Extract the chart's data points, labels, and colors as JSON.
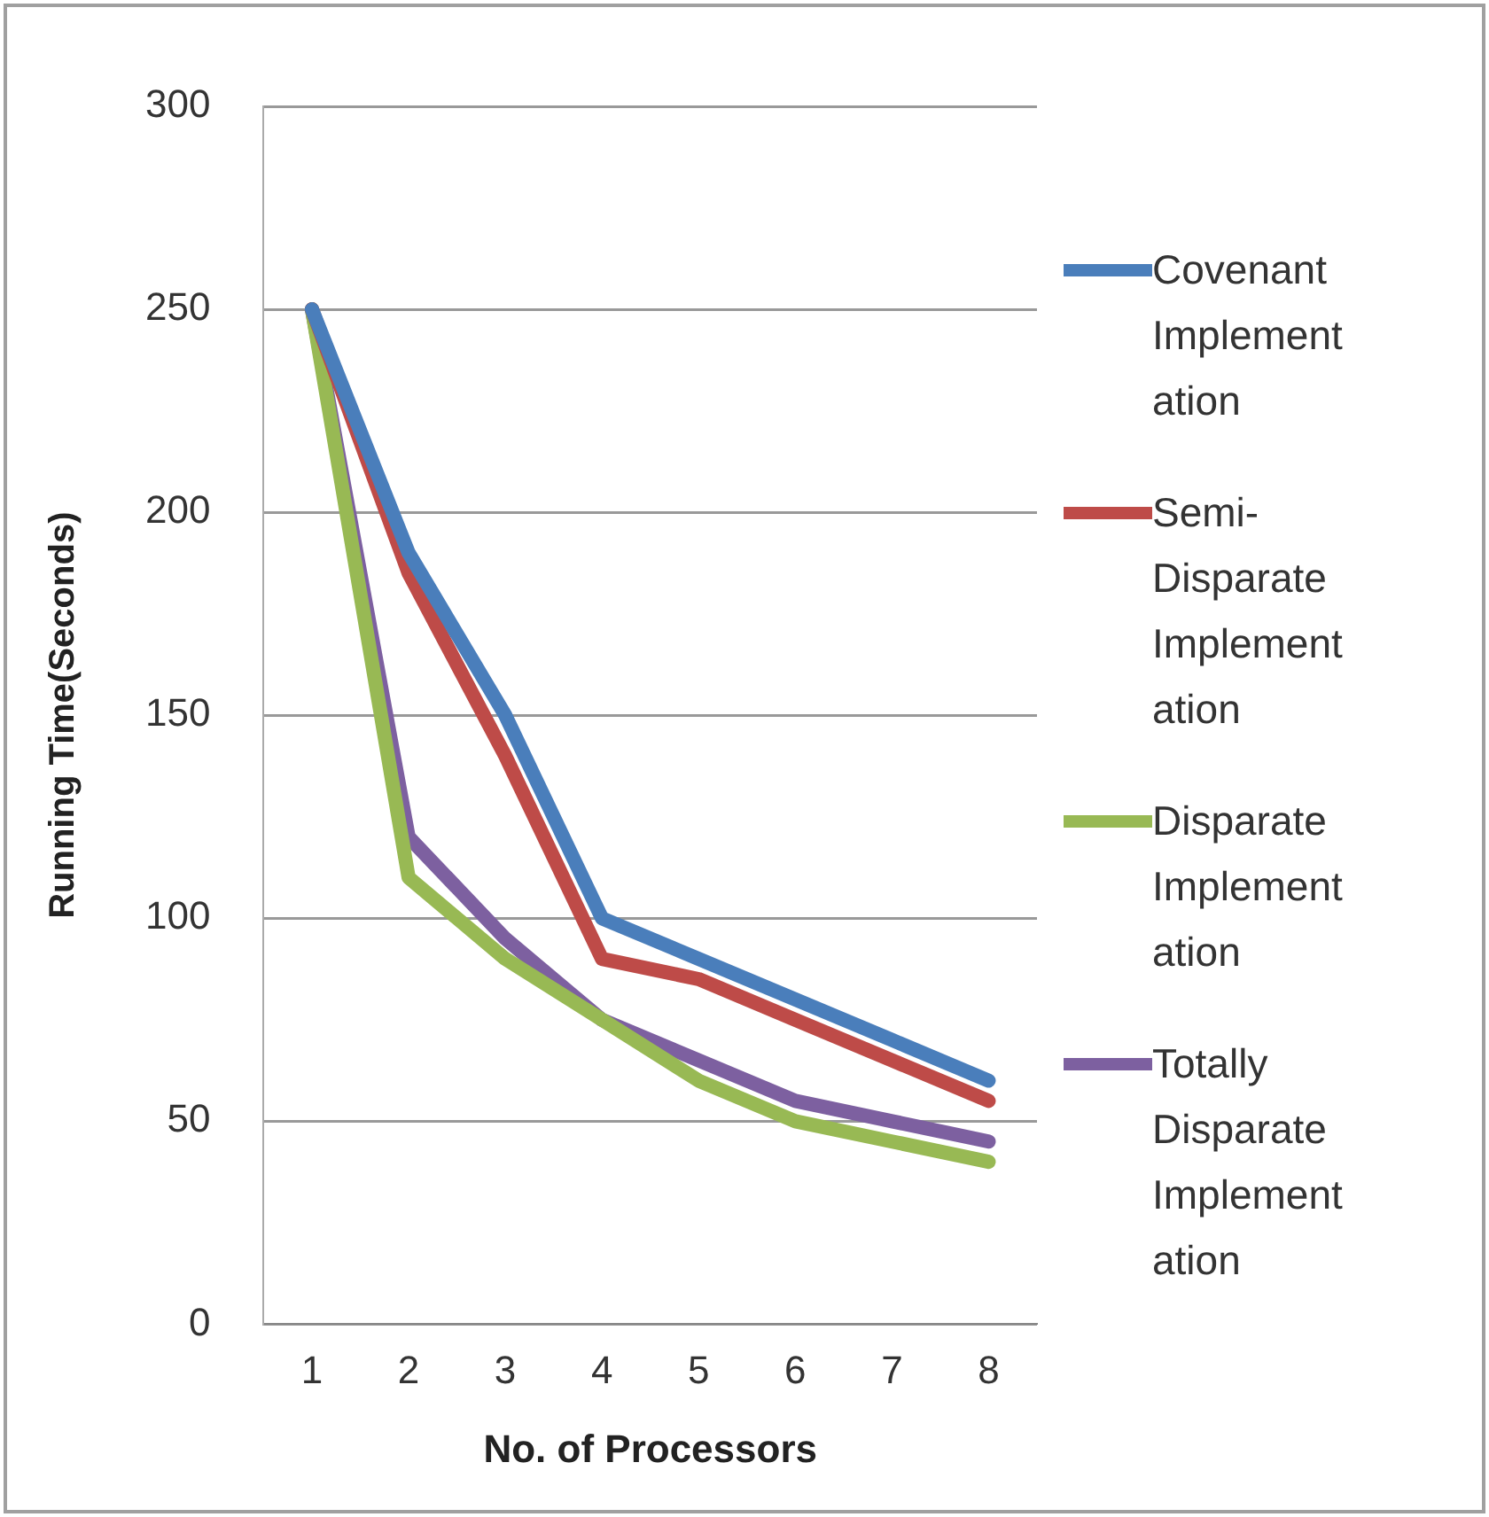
{
  "chart_data": {
    "type": "line",
    "xlabel": "No. of Processors",
    "ylabel": "Running Time(Seconds)",
    "categories": [
      "1",
      "2",
      "3",
      "4",
      "5",
      "6",
      "7",
      "8"
    ],
    "series": [
      {
        "name": "Covenant Implementation",
        "color": "#4a7ebb",
        "values": [
          250,
          190,
          150,
          100,
          90,
          80,
          70,
          60
        ]
      },
      {
        "name": "Semi-Disparate Implementation",
        "color": "#be4b48",
        "values": [
          250,
          185,
          140,
          90,
          85,
          75,
          65,
          55
        ]
      },
      {
        "name": "Disparate Implementation",
        "color": "#98b954",
        "values": [
          250,
          110,
          90,
          75,
          60,
          50,
          45,
          40
        ]
      },
      {
        "name": "Totally Disparate Implementation",
        "color": "#7d60a0",
        "values": [
          250,
          120,
          95,
          75,
          65,
          55,
          50,
          45
        ]
      }
    ],
    "ylim": [
      0,
      300
    ],
    "yticks": [
      0,
      50,
      100,
      150,
      200,
      250,
      300
    ],
    "grid": "y",
    "legend": "right",
    "marker": "none",
    "line_style": "solid"
  }
}
